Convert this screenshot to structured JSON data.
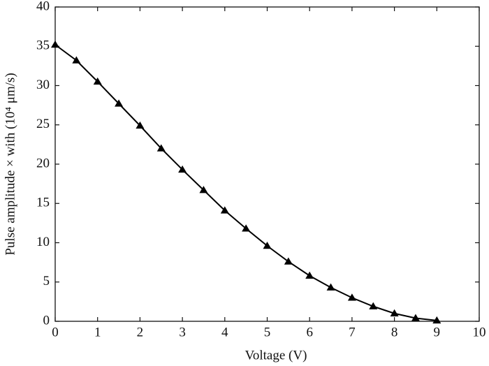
{
  "chart_data": {
    "type": "line",
    "xlabel": "Voltage (V)",
    "ylabel": "Pulse amplitude × with (10⁴ μm/s)",
    "series": [
      {
        "color": "#000000",
        "marker": "triangle",
        "x": [
          0,
          0.5,
          1,
          1.5,
          2,
          2.5,
          3,
          3.5,
          4,
          4.5,
          5,
          5.5,
          6,
          6.5,
          7,
          7.5,
          8,
          8.5,
          9
        ],
        "values": [
          35.2,
          33.2,
          30.5,
          27.7,
          24.9,
          22.0,
          19.3,
          16.7,
          14.1,
          11.8,
          9.6,
          7.6,
          5.8,
          4.3,
          3.0,
          1.9,
          1.0,
          0.4,
          0.1
        ]
      }
    ],
    "xlim": [
      0,
      10
    ],
    "xticks": [
      0,
      1,
      2,
      3,
      4,
      5,
      6,
      7,
      8,
      9,
      10
    ],
    "ylim": [
      0,
      40
    ],
    "yticks": [
      0,
      5,
      10,
      15,
      20,
      25,
      30,
      35,
      40
    ],
    "grid": false
  }
}
